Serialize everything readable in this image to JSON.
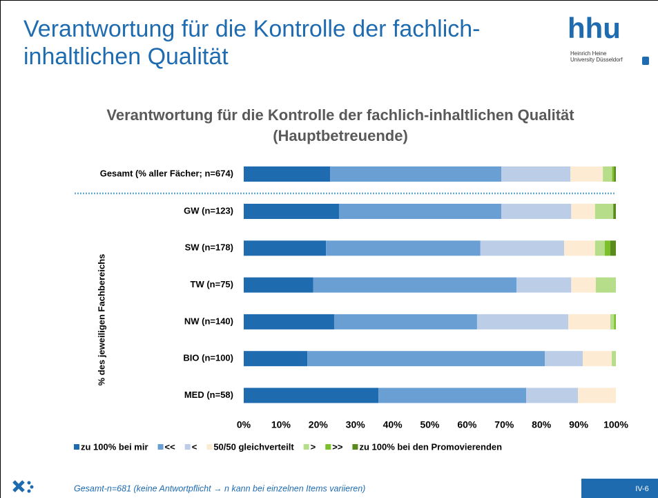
{
  "slide": {
    "title": "Verantwortung für die Kontrolle der fachlich-inhaltlichen Qualität",
    "logo": "hhu",
    "logo_line1": "Heinrich Heine",
    "logo_line2": "University Düsseldorf",
    "footer": "Gesamt-n=681 (keine Antwortpflicht → n kann bei einzelnen Items variieren)",
    "page": "IV-6"
  },
  "chart_data": {
    "type": "bar",
    "orientation": "horizontal",
    "stacked": true,
    "title": "Verantwortung für die Kontrolle der fachlich-inhaltlichen Qualität",
    "subtitle": "(Hauptbetreuende)",
    "ylabel": "% des jeweiligen Fachbereichs",
    "categories": [
      "Gesamt (% aller Fächer; n=674)",
      "GW (n=123)",
      "SW (n=178)",
      "TW (n=75)",
      "NW (n=140)",
      "BIO (n=100)",
      "MED (n=58)"
    ],
    "series": [
      {
        "name": "zu 100% bei mir",
        "color": "#1f6bb0",
        "values": [
          23.2,
          25.6,
          22.1,
          18.7,
          24.3,
          17.1,
          36.2
        ]
      },
      {
        "name": "<<",
        "color": "#6a9fd4",
        "values": [
          46.0,
          43.6,
          41.5,
          54.6,
          38.4,
          63.8,
          39.7
        ]
      },
      {
        "name": "<",
        "color": "#bccde8",
        "values": [
          18.6,
          18.8,
          22.5,
          14.7,
          24.5,
          10.2,
          13.9
        ]
      },
      {
        "name": "50/50 gleichverteilt",
        "color": "#fdebd3",
        "values": [
          8.7,
          6.4,
          8.3,
          6.6,
          11.3,
          7.8,
          10.2
        ]
      },
      {
        "name": ">",
        "color": "#b6dd8a",
        "values": [
          2.5,
          4.9,
          2.6,
          5.4,
          1.0,
          1.1,
          0
        ]
      },
      {
        "name": ">>",
        "color": "#7bbf2a",
        "values": [
          0.5,
          0,
          1.5,
          0,
          0.5,
          0,
          0
        ]
      },
      {
        "name": "zu 100% bei den Promovierenden",
        "color": "#5a8a1e",
        "values": [
          0.5,
          0.7,
          1.5,
          0,
          0,
          0,
          0
        ]
      }
    ],
    "xlim": [
      0,
      100
    ],
    "xticks": [
      {
        "value": 0,
        "label": "0%"
      },
      {
        "value": 10,
        "label": "10%"
      },
      {
        "value": 20,
        "label": "20%"
      },
      {
        "value": 30,
        "label": "30%"
      },
      {
        "value": 40,
        "label": "40%"
      },
      {
        "value": 50,
        "label": "50%"
      },
      {
        "value": 60,
        "label": "60%"
      },
      {
        "value": 70,
        "label": "70%"
      },
      {
        "value": 80,
        "label": "80%"
      },
      {
        "value": 90,
        "label": "90%"
      },
      {
        "value": 100,
        "label": "100%"
      }
    ],
    "legend": "bottom"
  }
}
